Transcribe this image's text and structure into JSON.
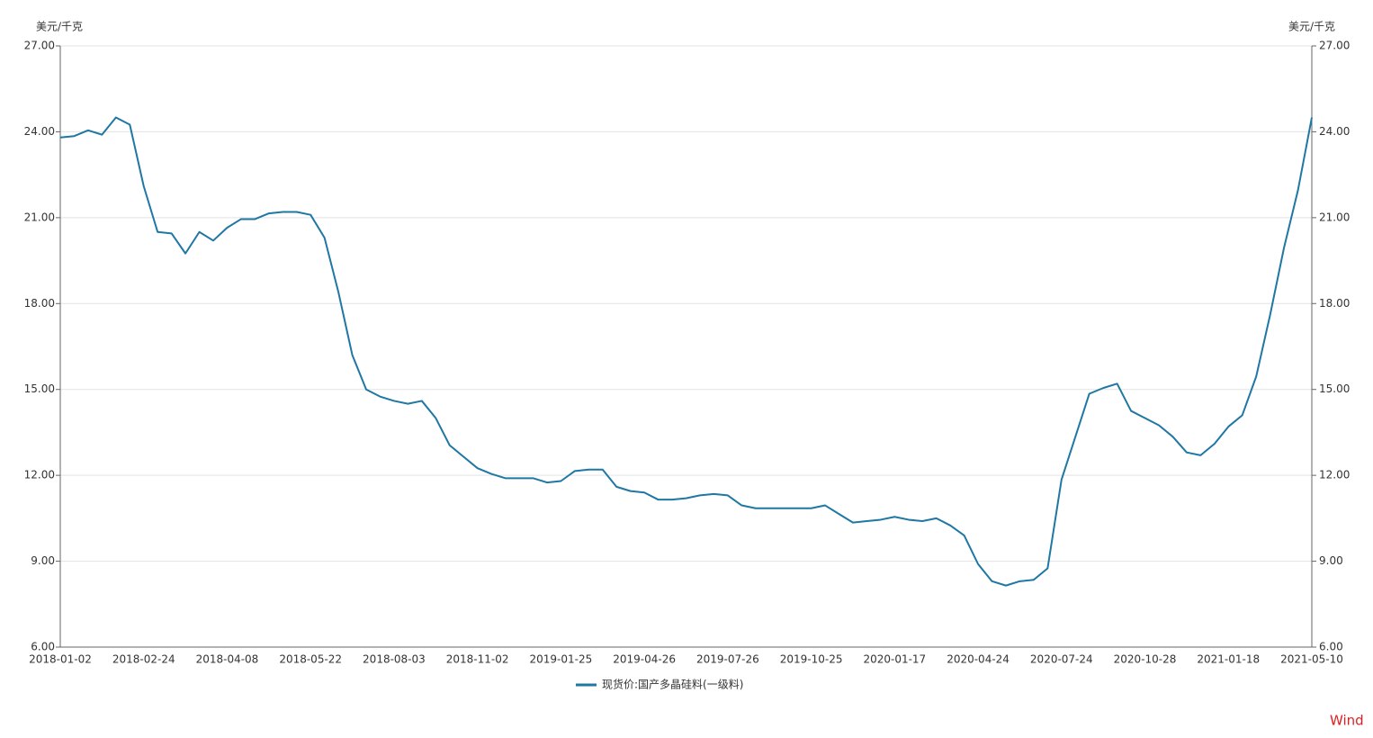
{
  "chart_data": {
    "type": "line",
    "y_unit": "美元/千克",
    "y2_unit": "美元/千克",
    "categories": [
      "2018-01-02",
      null,
      null,
      null,
      null,
      null,
      "2018-02-24",
      null,
      null,
      null,
      null,
      null,
      "2018-04-08",
      null,
      null,
      null,
      null,
      null,
      "2018-05-22",
      null,
      null,
      null,
      null,
      null,
      "2018-08-03",
      null,
      null,
      null,
      null,
      null,
      "2018-11-02",
      null,
      null,
      null,
      null,
      null,
      "2019-01-25",
      null,
      null,
      null,
      null,
      null,
      "2019-04-26",
      null,
      null,
      null,
      null,
      null,
      "2019-07-26",
      null,
      null,
      null,
      null,
      null,
      "2019-10-25",
      null,
      null,
      null,
      null,
      null,
      "2020-01-17",
      null,
      null,
      null,
      null,
      null,
      "2020-04-24",
      null,
      null,
      null,
      null,
      null,
      "2020-07-24",
      null,
      null,
      null,
      null,
      null,
      "2020-10-28",
      null,
      null,
      null,
      null,
      null,
      "2021-01-18",
      null,
      null,
      null,
      null,
      null,
      "2021-05-10"
    ],
    "series": [
      {
        "name": "现货价:国产多晶硅料(一级料)",
        "color": "#1f77a4",
        "values": [
          23.8,
          23.85,
          24.05,
          23.9,
          24.5,
          24.25,
          22.1,
          20.5,
          20.45,
          19.75,
          20.5,
          20.2,
          20.65,
          20.95,
          20.95,
          21.15,
          21.2,
          21.2,
          21.1,
          20.3,
          18.4,
          16.2,
          15.0,
          14.75,
          14.6,
          14.5,
          14.6,
          14.0,
          13.05,
          12.65,
          12.25,
          12.05,
          11.9,
          11.9,
          11.9,
          11.75,
          11.8,
          12.15,
          12.2,
          12.2,
          11.6,
          11.45,
          11.4,
          11.15,
          11.15,
          11.2,
          11.3,
          11.35,
          11.3,
          10.95,
          10.85,
          10.85,
          10.85,
          10.85,
          10.85,
          10.95,
          10.65,
          10.35,
          10.4,
          10.45,
          10.55,
          10.45,
          10.4,
          10.5,
          10.25,
          9.9,
          8.9,
          8.3,
          8.15,
          8.3,
          8.35,
          8.75,
          11.85,
          13.35,
          14.85,
          15.05,
          15.2,
          14.25,
          14.0,
          13.75,
          13.35,
          12.8,
          12.7,
          13.1,
          13.7,
          14.1,
          15.45,
          17.6,
          19.95,
          21.95,
          24.5
        ]
      }
    ],
    "ylim": [
      6,
      27
    ],
    "yticks": [
      {
        "value": 6,
        "label": "6.00"
      },
      {
        "value": 9,
        "label": "9.00"
      },
      {
        "value": 12,
        "label": "12.00"
      },
      {
        "value": 15,
        "label": "15.00"
      },
      {
        "value": 18,
        "label": "18.00"
      },
      {
        "value": 21,
        "label": "21.00"
      },
      {
        "value": 24,
        "label": "24.00"
      },
      {
        "value": 27,
        "label": "27.00"
      }
    ],
    "y2lim": [
      6,
      27
    ],
    "y2ticks": [
      {
        "value": 6,
        "label": "6.00"
      },
      {
        "value": 9,
        "label": "9.00"
      },
      {
        "value": 12,
        "label": "12.00"
      },
      {
        "value": 15,
        "label": "15.00"
      },
      {
        "value": 18,
        "label": "18.00"
      },
      {
        "value": 21,
        "label": "21.00"
      },
      {
        "value": 24,
        "label": "24.00"
      },
      {
        "value": 27,
        "label": "27.00"
      }
    ],
    "grid": true,
    "source": "Wind"
  }
}
